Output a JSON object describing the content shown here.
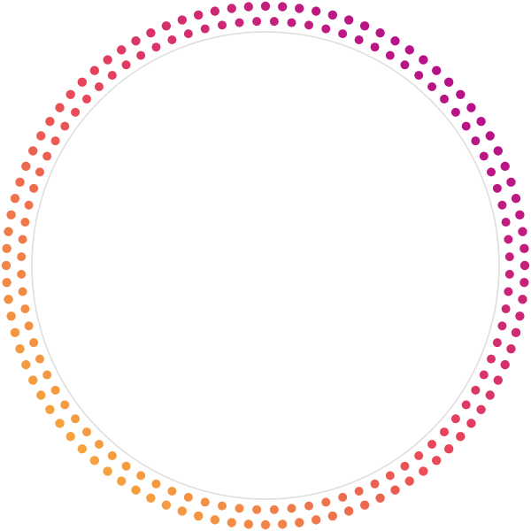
{
  "graphic": {
    "description_free": true,
    "colors": {
      "gradient_start": "#b5108a",
      "gradient_mid": "#e8445a",
      "gradient_end": "#f6a33e",
      "inner_circle_stroke": "#dddddd",
      "background": "#ffffff"
    },
    "rings": [
      {
        "name": "outer-dot-ring",
        "dot_count": 96
      },
      {
        "name": "inner-dot-ring",
        "dot_count": 88
      }
    ]
  }
}
